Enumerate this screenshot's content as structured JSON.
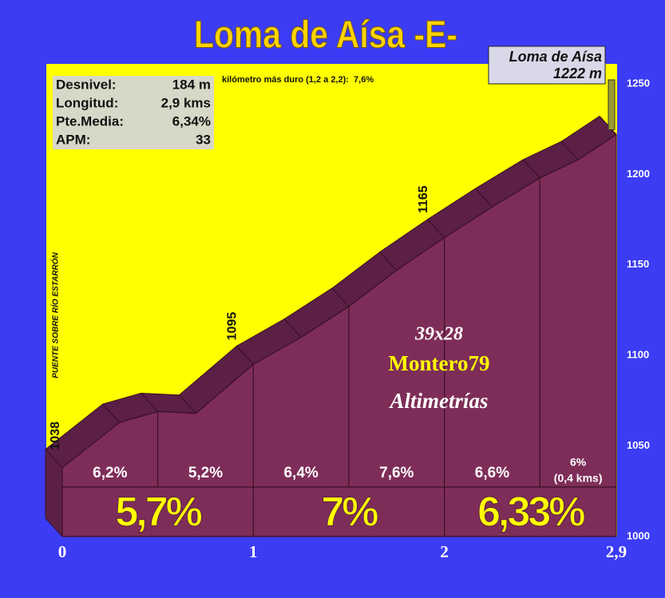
{
  "chart_data": {
    "type": "area",
    "title": "Loma de Aísa -E-",
    "x": [
      0,
      0.3,
      0.5,
      0.7,
      1,
      1.25,
      1.5,
      1.75,
      2,
      2.25,
      2.5,
      2.7,
      2.9
    ],
    "values": [
      1038,
      1063,
      1069,
      1068,
      1095,
      1110,
      1127,
      1147,
      1165,
      1182,
      1198,
      1208,
      1222
    ],
    "xlim": [
      0,
      2.9
    ],
    "ylim": [
      1000,
      1250
    ],
    "xticks": [
      0,
      1,
      2,
      {
        "value": 2.9,
        "label": "2,9"
      }
    ],
    "yticks": [
      1000,
      1050,
      1100,
      1150,
      1200,
      1250
    ],
    "color": "#7e2d58",
    "stats": [
      {
        "label": "Desnivel:",
        "value": "184 m"
      },
      {
        "label": "Longitud:",
        "value": "2,9 kms"
      },
      {
        "label": "Pte.Media:",
        "value": "6,34%"
      },
      {
        "label": "APM:",
        "value": "33"
      }
    ],
    "note": "kilómetro más duro (1,2 a 2,2):  7,6%",
    "summit": {
      "name": "Loma de Aísa",
      "elevation": "1222 m"
    },
    "segments": [
      {
        "from": 0,
        "to": 0.5,
        "labels": [
          "6,2%"
        ]
      },
      {
        "from": 0.5,
        "to": 1,
        "labels": [
          "5,2%"
        ]
      },
      {
        "from": 1,
        "to": 1.5,
        "labels": [
          "6,4%"
        ]
      },
      {
        "from": 1.5,
        "to": 2,
        "labels": [
          "7,6%"
        ]
      },
      {
        "from": 2,
        "to": 2.5,
        "labels": [
          "6,6%"
        ]
      },
      {
        "from": 2.5,
        "to": 2.9,
        "labels": [
          "6%",
          "(0,4 kms)"
        ]
      }
    ],
    "km_grades": [
      {
        "from": 0,
        "to": 1,
        "label": "5,7%"
      },
      {
        "from": 1,
        "to": 2,
        "label": "7%"
      },
      {
        "from": 2,
        "to": 2.9,
        "label": "6,33%"
      }
    ],
    "point_labels": [
      {
        "x": 0,
        "value": 1038,
        "note": "PUENTE SOBRE RÍO ESTARRÓN"
      },
      {
        "x": 1,
        "value": 1095
      },
      {
        "x": 2,
        "value": 1165
      }
    ],
    "watermark": [
      "39x28",
      "Montero79",
      "Altimetrías"
    ]
  }
}
